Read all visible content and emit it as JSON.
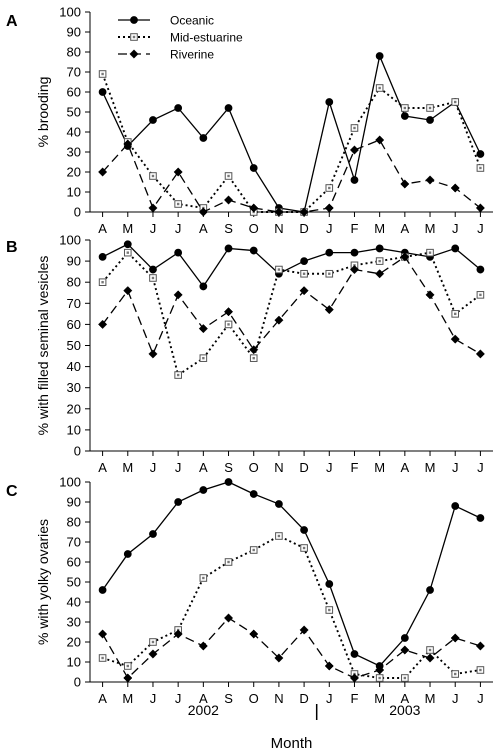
{
  "chart_data": [
    {
      "type": "line",
      "panel": "A",
      "ylabel": "% brooding",
      "ylim": [
        0,
        100
      ],
      "yticks": [
        0,
        10,
        20,
        30,
        40,
        50,
        60,
        70,
        80,
        90,
        100
      ],
      "categories": [
        "A",
        "M",
        "J",
        "J",
        "A",
        "S",
        "O",
        "N",
        "D",
        "J",
        "F",
        "M",
        "A",
        "M",
        "J",
        "J"
      ],
      "legend": {
        "position": "top-left"
      },
      "series": [
        {
          "name": "Oceanic",
          "style": "solid",
          "marker": "circle",
          "values": [
            60,
            33,
            46,
            52,
            37,
            52,
            22,
            2,
            0,
            55,
            16,
            78,
            48,
            46,
            55,
            29
          ]
        },
        {
          "name": "Mid-estuarine",
          "style": "dotted",
          "marker": "square",
          "values": [
            69,
            35,
            18,
            4,
            2,
            18,
            0,
            0,
            0,
            12,
            42,
            62,
            52,
            52,
            55,
            22
          ]
        },
        {
          "name": "Riverine",
          "style": "dashed",
          "marker": "diamond",
          "values": [
            20,
            34,
            2,
            20,
            0,
            6,
            2,
            0,
            0,
            2,
            31,
            36,
            14,
            16,
            12,
            2
          ]
        }
      ]
    },
    {
      "type": "line",
      "panel": "B",
      "ylabel": "% with filled seminal vesicles",
      "ylim": [
        0,
        100
      ],
      "yticks": [
        0,
        10,
        20,
        30,
        40,
        50,
        60,
        70,
        80,
        90,
        100
      ],
      "categories": [
        "A",
        "M",
        "J",
        "J",
        "A",
        "S",
        "O",
        "N",
        "D",
        "J",
        "F",
        "M",
        "A",
        "M",
        "J",
        "J"
      ],
      "series": [
        {
          "name": "Oceanic",
          "style": "solid",
          "marker": "circle",
          "values": [
            92,
            98,
            86,
            94,
            78,
            96,
            95,
            84,
            90,
            94,
            94,
            96,
            94,
            92,
            96,
            86
          ]
        },
        {
          "name": "Mid-estuarine",
          "style": "dotted",
          "marker": "square",
          "values": [
            80,
            94,
            82,
            36,
            44,
            60,
            44,
            86,
            84,
            84,
            88,
            90,
            92,
            94,
            65,
            74
          ]
        },
        {
          "name": "Riverine",
          "style": "dashed",
          "marker": "diamond",
          "values": [
            60,
            76,
            46,
            74,
            58,
            66,
            48,
            62,
            76,
            67,
            86,
            84,
            92,
            74,
            53,
            46
          ]
        }
      ]
    },
    {
      "type": "line",
      "panel": "C",
      "ylabel": "% with yolky ovaries",
      "ylim": [
        0,
        100
      ],
      "yticks": [
        0,
        10,
        20,
        30,
        40,
        50,
        60,
        70,
        80,
        90,
        100
      ],
      "categories": [
        "A",
        "M",
        "J",
        "J",
        "A",
        "S",
        "O",
        "N",
        "D",
        "J",
        "F",
        "M",
        "A",
        "M",
        "J",
        "J"
      ],
      "series": [
        {
          "name": "Oceanic",
          "style": "solid",
          "marker": "circle",
          "values": [
            46,
            64,
            74,
            90,
            96,
            100,
            94,
            89,
            76,
            49,
            14,
            8,
            22,
            46,
            88,
            82
          ]
        },
        {
          "name": "Mid-estuarine",
          "style": "dotted",
          "marker": "square",
          "values": [
            12,
            8,
            20,
            26,
            52,
            60,
            66,
            73,
            67,
            36,
            4,
            2,
            2,
            16,
            4,
            6
          ]
        },
        {
          "name": "Riverine",
          "style": "dashed",
          "marker": "diamond",
          "values": [
            24,
            2,
            14,
            24,
            18,
            32,
            24,
            12,
            26,
            8,
            2,
            6,
            16,
            12,
            22,
            18
          ]
        }
      ],
      "year_labels": [
        "2002",
        "2003"
      ],
      "xlabel": "Month"
    }
  ]
}
